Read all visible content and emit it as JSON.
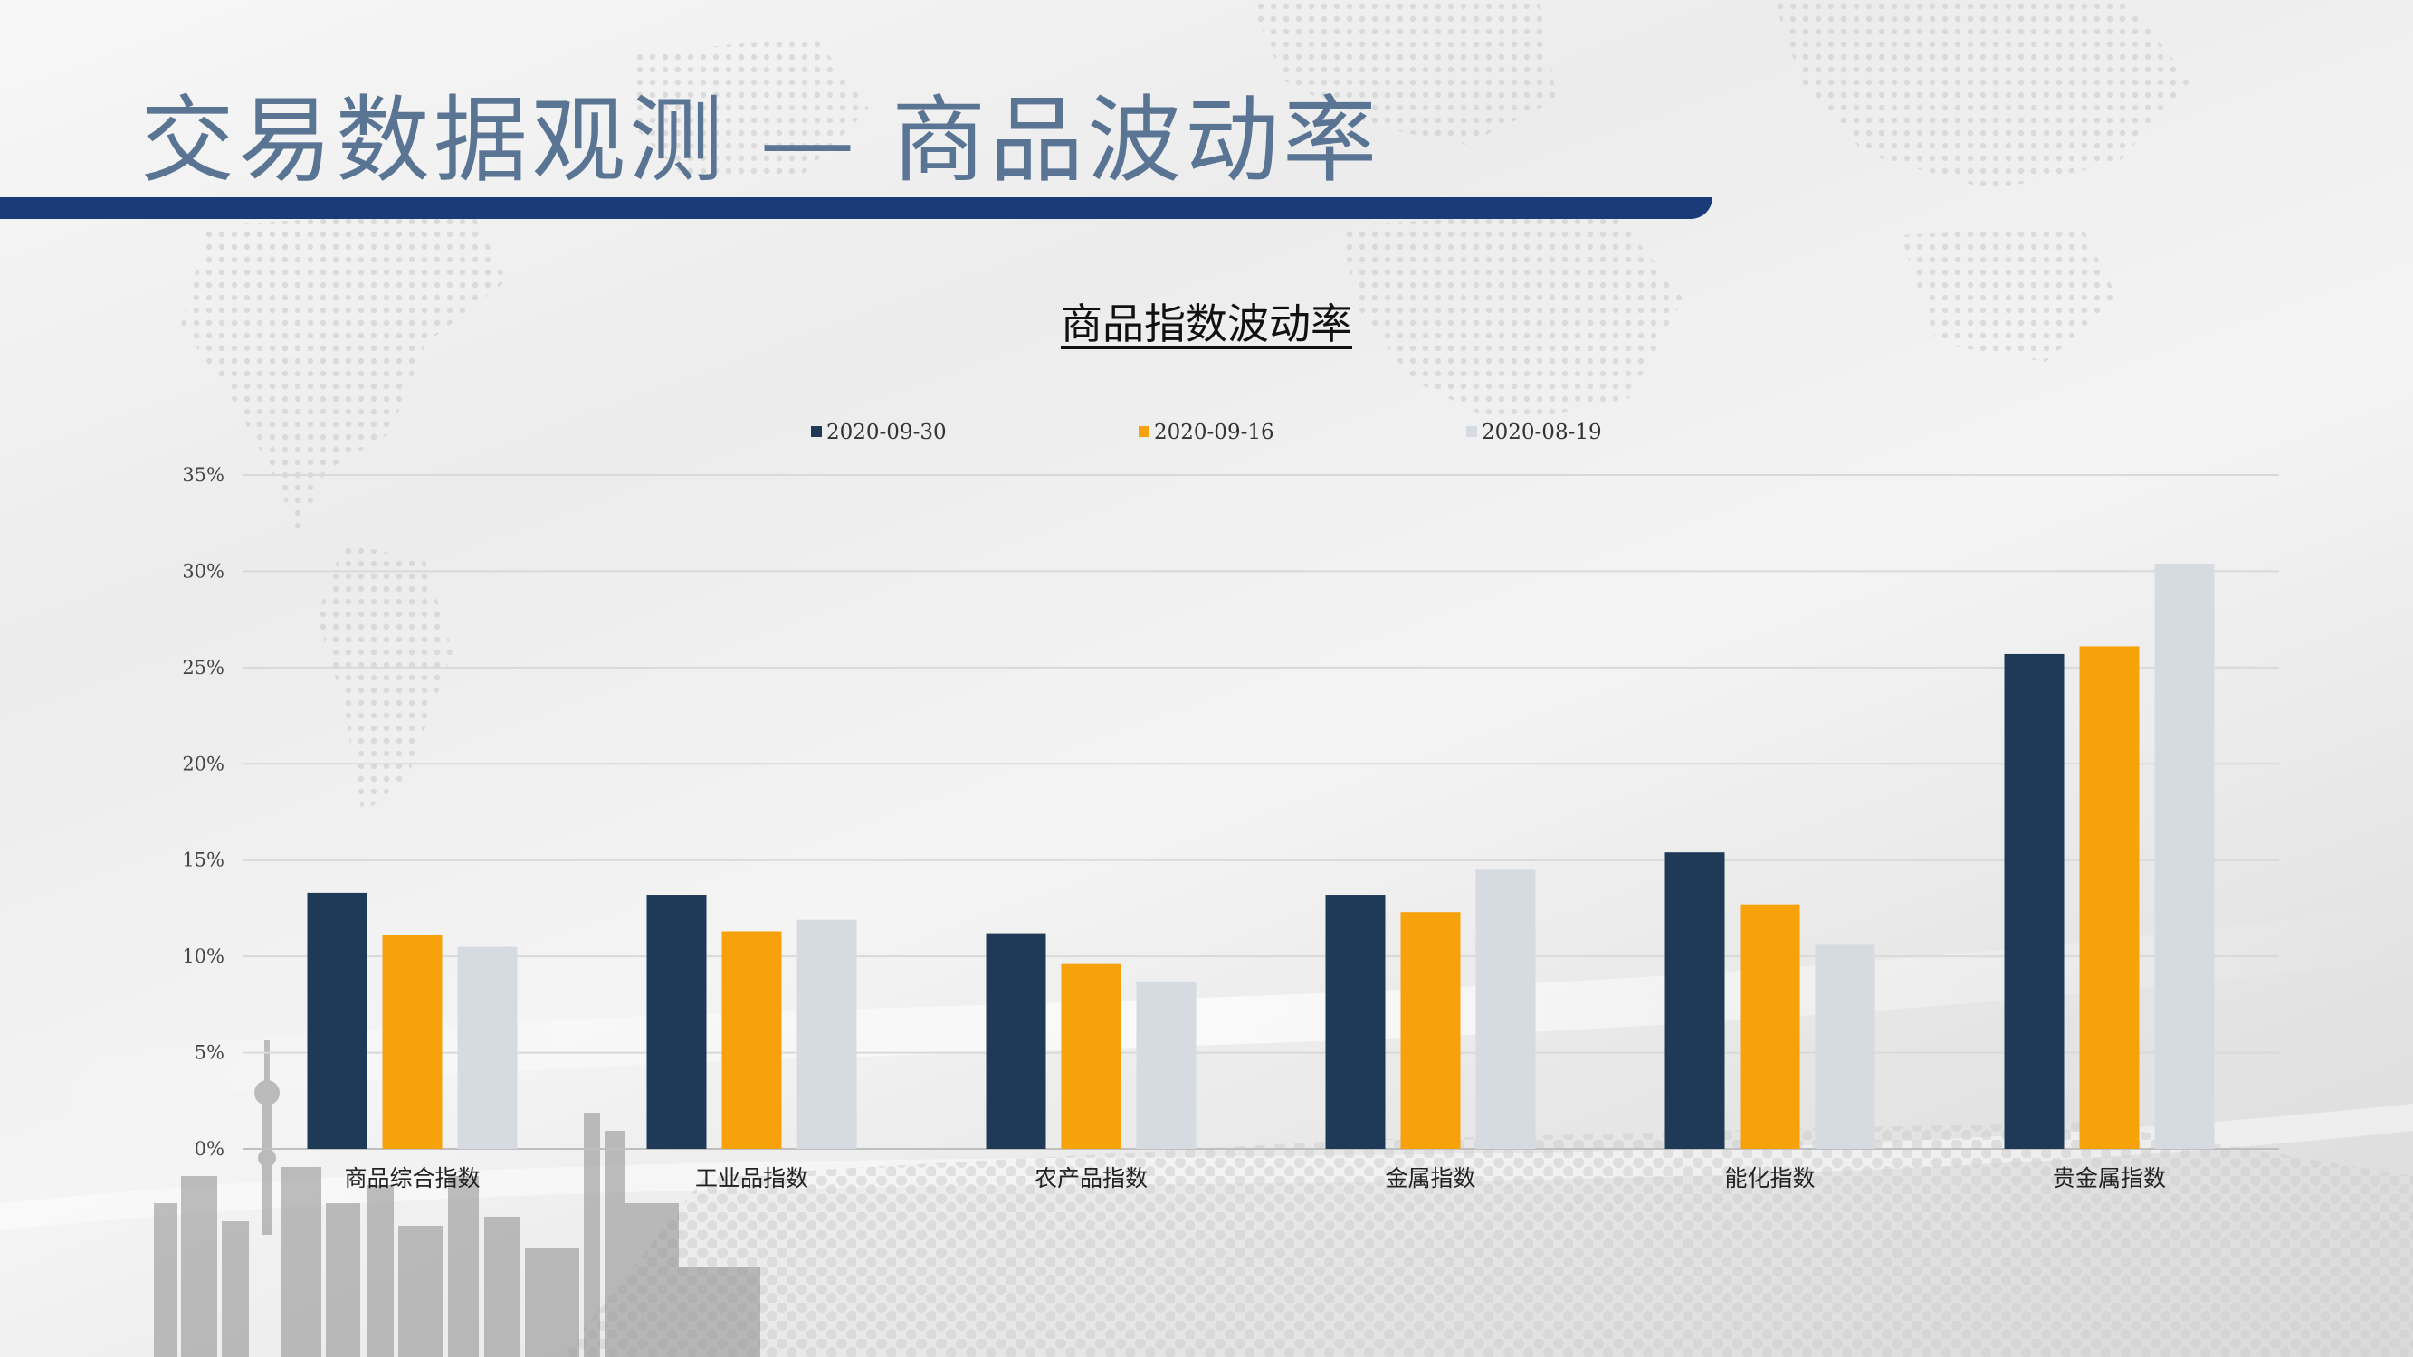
{
  "slide": {
    "title": "交易数据观测 — 商品波动率"
  },
  "colors": {
    "title_text": "#5a7494",
    "title_bar": "#1b3a78"
  },
  "chart_data": {
    "type": "bar",
    "title": "商品指数波动率",
    "categories": [
      "商品综合指数",
      "工业品指数",
      "农产品指数",
      "金属指数",
      "能化指数",
      "贵金属指数"
    ],
    "series": [
      {
        "name": "2020-09-30",
        "color": "#1f3a56",
        "values": [
          13.3,
          13.2,
          11.2,
          13.2,
          15.4,
          25.7
        ]
      },
      {
        "name": "2020-09-16",
        "color": "#f7a20a",
        "values": [
          11.1,
          11.3,
          9.6,
          12.3,
          12.7,
          26.1
        ]
      },
      {
        "name": "2020-08-19",
        "color": "#d6dbe2",
        "values": [
          10.5,
          11.9,
          8.7,
          14.5,
          10.6,
          30.4
        ]
      }
    ],
    "y_ticks": [
      "0%",
      "5%",
      "10%",
      "15%",
      "20%",
      "25%",
      "30%",
      "35%"
    ],
    "ylim": [
      0,
      35
    ],
    "grid": true,
    "legend_position": "top"
  }
}
